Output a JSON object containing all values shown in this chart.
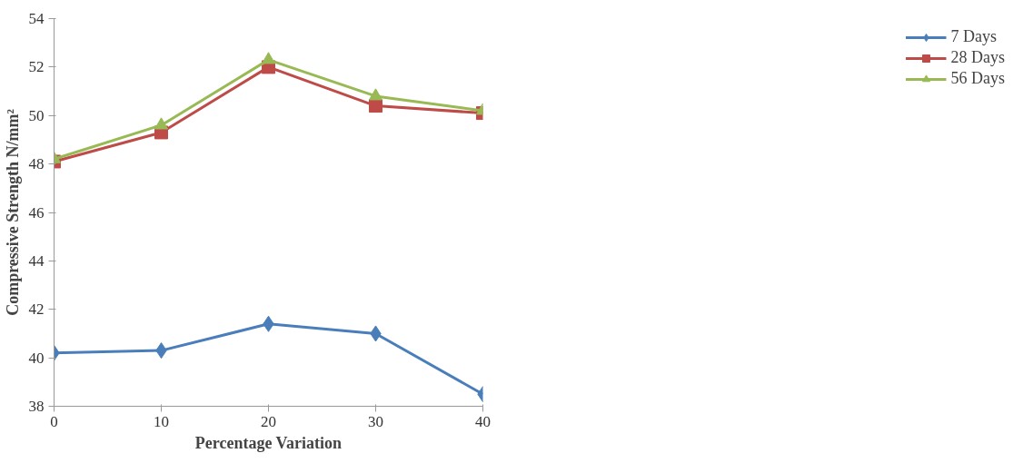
{
  "chart_data": {
    "type": "line",
    "xlabel": "Percentage Variation",
    "ylabel": "Compressive Strength N/mm²",
    "x": [
      0,
      10,
      20,
      30,
      40
    ],
    "series": [
      {
        "name": "7 Days",
        "color": "#4a7ebb",
        "marker": "diamond",
        "values": [
          40.2,
          40.3,
          41.4,
          41.0,
          38.5
        ]
      },
      {
        "name": "28 Days",
        "color": "#be4b48",
        "marker": "square",
        "values": [
          48.1,
          49.3,
          52.0,
          50.4,
          50.1
        ]
      },
      {
        "name": "56 Days",
        "color": "#98b954",
        "marker": "triangle",
        "values": [
          48.2,
          49.6,
          52.3,
          50.8,
          50.2
        ]
      }
    ],
    "xlim": [
      0,
      40
    ],
    "xticks": [
      0,
      10,
      20,
      30,
      40
    ],
    "ylim": [
      38,
      54
    ],
    "yticks": [
      38,
      40,
      42,
      44,
      46,
      48,
      50,
      52,
      54
    ],
    "grid": false,
    "legend": "right",
    "line_style": "solid"
  }
}
